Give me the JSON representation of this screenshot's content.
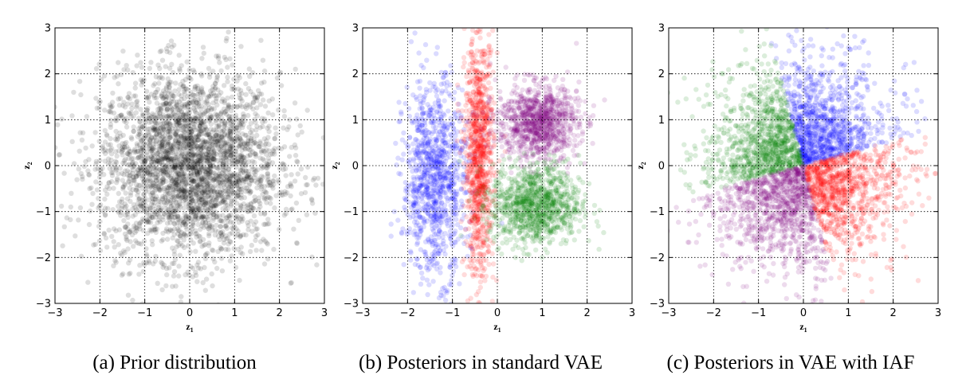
{
  "chart_data": [
    {
      "type": "scatter",
      "caption": "(a) Prior distribution",
      "xlabel": "z",
      "xlabel_subscript": "1",
      "ylabel": "z",
      "ylabel_subscript": "2",
      "xlim": [
        -3,
        3
      ],
      "ylim": [
        -3,
        3
      ],
      "xticks": [
        "−3",
        "−2",
        "−1",
        "0",
        "1",
        "2",
        "3"
      ],
      "yticks": [
        "−3",
        "−2",
        "−1",
        "0",
        "1",
        "2",
        "3"
      ],
      "grid": true,
      "series": [
        {
          "color": "#000000",
          "distribution": "gaussian",
          "mean": [
            0,
            0
          ],
          "std": [
            1,
            1
          ],
          "n": 3200
        }
      ]
    },
    {
      "type": "scatter",
      "caption": "(b) Posteriors in standard VAE",
      "xlabel": "z",
      "xlabel_subscript": "1",
      "ylabel": "z",
      "ylabel_subscript": "2",
      "xlim": [
        -3,
        3
      ],
      "ylim": [
        -3,
        3
      ],
      "xticks": [
        "−3",
        "−2",
        "−1",
        "0",
        "1",
        "2",
        "3"
      ],
      "yticks": [
        "−3",
        "−2",
        "−1",
        "0",
        "1",
        "2",
        "3"
      ],
      "grid": true,
      "series": [
        {
          "color": "#0000ff",
          "distribution": "gaussian",
          "mean": [
            -1.4,
            -0.3
          ],
          "std": [
            0.35,
            1.05
          ],
          "n": 1000
        },
        {
          "color": "#ff0000",
          "distribution": "gaussian",
          "mean": [
            -0.4,
            0.2
          ],
          "std": [
            0.16,
            1.3
          ],
          "n": 1000
        },
        {
          "color": "#800080",
          "distribution": "gaussian",
          "mean": [
            0.9,
            0.95
          ],
          "std": [
            0.45,
            0.4
          ],
          "n": 1000
        },
        {
          "color": "#008000",
          "distribution": "gaussian",
          "mean": [
            0.85,
            -0.85
          ],
          "std": [
            0.5,
            0.45
          ],
          "n": 1000
        }
      ]
    },
    {
      "type": "scatter",
      "caption": "(c) Posteriors in VAE with IAF",
      "xlabel": "z",
      "xlabel_subscript": "1",
      "ylabel": "z",
      "ylabel_subscript": "2",
      "xlim": [
        -3,
        3
      ],
      "ylim": [
        -3,
        3
      ],
      "xticks": [
        "−3",
        "−2",
        "−1",
        "0",
        "1",
        "2",
        "3"
      ],
      "yticks": [
        "−3",
        "−2",
        "−1",
        "0",
        "1",
        "2",
        "3"
      ],
      "grid": true,
      "series": [
        {
          "color": "#0000ff",
          "distribution": "wedge",
          "angle_from_deg": 15,
          "angle_to_deg": 105,
          "n": 1000
        },
        {
          "color": "#008000",
          "distribution": "wedge",
          "angle_from_deg": 105,
          "angle_to_deg": 195,
          "n": 1000
        },
        {
          "color": "#800080",
          "distribution": "wedge",
          "angle_from_deg": 195,
          "angle_to_deg": 285,
          "n": 1000
        },
        {
          "color": "#ff0000",
          "distribution": "wedge",
          "angle_from_deg": 285,
          "angle_to_deg": 375,
          "n": 1000
        }
      ]
    }
  ]
}
